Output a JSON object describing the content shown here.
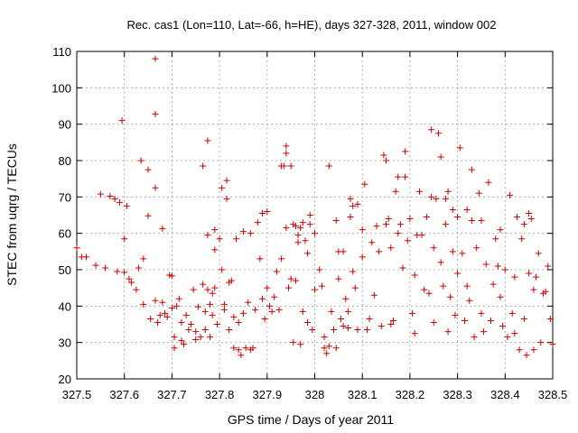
{
  "chart_data": {
    "type": "scatter",
    "title": "Rec. cas1 (Lon=110, Lat=-66, h=HE), days 327-328, 2011, window 002",
    "xlabel": "GPS time / Days of year 2011",
    "ylabel": "STEC from uqrg / TECUs",
    "xlim": [
      327.5,
      328.5
    ],
    "ylim": [
      20,
      110
    ],
    "xticks": [
      327.5,
      327.6,
      327.7,
      327.8,
      327.9,
      328,
      328.1,
      328.2,
      328.3,
      328.4,
      328.5
    ],
    "xtick_labels": [
      "327.5",
      "327.6",
      "327.7",
      "327.8",
      "327.9",
      "328",
      "328.1",
      "328.2",
      "328.3",
      "328.4",
      "328.5"
    ],
    "yticks": [
      20,
      30,
      40,
      50,
      60,
      70,
      80,
      90,
      100,
      110
    ],
    "ytick_labels": [
      "20",
      "30",
      "40",
      "50",
      "60",
      "70",
      "80",
      "90",
      "100",
      "110"
    ],
    "grid": true,
    "marker": "plus",
    "color": "#cc0000",
    "points": [
      [
        327.5,
        56.0
      ],
      [
        327.51,
        53.5
      ],
      [
        327.52,
        53.5
      ],
      [
        327.54,
        51.2
      ],
      [
        327.55,
        70.8
      ],
      [
        327.56,
        50.5
      ],
      [
        327.57,
        70.2
      ],
      [
        327.58,
        69.5
      ],
      [
        327.585,
        49.5
      ],
      [
        327.59,
        68.5
      ],
      [
        327.595,
        91.0
      ],
      [
        327.6,
        58.5
      ],
      [
        327.6,
        49.3
      ],
      [
        327.605,
        67.5
      ],
      [
        327.61,
        47.5
      ],
      [
        327.615,
        46.5
      ],
      [
        327.625,
        44.5
      ],
      [
        327.63,
        50.5
      ],
      [
        327.635,
        80.0
      ],
      [
        327.64,
        53.0
      ],
      [
        327.64,
        40.5
      ],
      [
        327.65,
        77.5
      ],
      [
        327.65,
        64.8
      ],
      [
        327.655,
        36.5
      ],
      [
        327.665,
        108.0
      ],
      [
        327.665,
        92.8
      ],
      [
        327.665,
        72.5
      ],
      [
        327.665,
        41.5
      ],
      [
        327.67,
        35.5
      ],
      [
        327.675,
        37.5
      ],
      [
        327.68,
        61.3
      ],
      [
        327.68,
        41.0
      ],
      [
        327.685,
        38.0
      ],
      [
        327.69,
        37.0
      ],
      [
        327.695,
        48.5
      ],
      [
        327.7,
        48.3
      ],
      [
        327.7,
        39.5
      ],
      [
        327.705,
        31.5
      ],
      [
        327.705,
        28.5
      ],
      [
        327.71,
        40.0
      ],
      [
        327.715,
        42.0
      ],
      [
        327.72,
        35.5
      ],
      [
        327.72,
        30.5
      ],
      [
        327.725,
        29.5
      ],
      [
        327.73,
        37.5
      ],
      [
        327.735,
        33.5
      ],
      [
        327.74,
        35.0
      ],
      [
        327.745,
        44.5
      ],
      [
        327.75,
        30.8
      ],
      [
        327.75,
        33.0
      ],
      [
        327.755,
        39.8
      ],
      [
        327.76,
        31.5
      ],
      [
        327.765,
        78.5
      ],
      [
        327.765,
        46.0
      ],
      [
        327.77,
        38.5
      ],
      [
        327.77,
        33.5
      ],
      [
        327.775,
        85.5
      ],
      [
        327.775,
        59.5
      ],
      [
        327.775,
        44.5
      ],
      [
        327.78,
        40.5
      ],
      [
        327.78,
        31.5
      ],
      [
        327.785,
        43.5
      ],
      [
        327.785,
        37.5
      ],
      [
        327.79,
        61.0
      ],
      [
        327.79,
        45.0
      ],
      [
        327.79,
        55.5
      ],
      [
        327.795,
        35.0
      ],
      [
        327.8,
        58.5
      ],
      [
        327.805,
        50.0
      ],
      [
        327.805,
        72.5
      ],
      [
        327.81,
        40.5
      ],
      [
        327.81,
        39.0
      ],
      [
        327.815,
        74.5
      ],
      [
        327.815,
        69.5
      ],
      [
        327.82,
        46.5
      ],
      [
        327.82,
        33.5
      ],
      [
        327.825,
        47.0
      ],
      [
        327.83,
        37.0
      ],
      [
        327.83,
        28.5
      ],
      [
        327.835,
        58.5
      ],
      [
        327.84,
        35.5
      ],
      [
        327.84,
        28.0
      ],
      [
        327.845,
        26.5
      ],
      [
        327.85,
        38.0
      ],
      [
        327.85,
        60.5
      ],
      [
        327.855,
        28.5
      ],
      [
        327.86,
        41.0
      ],
      [
        327.865,
        60.0
      ],
      [
        327.865,
        28.0
      ],
      [
        327.87,
        28.5
      ],
      [
        327.875,
        39.0
      ],
      [
        327.88,
        63.0
      ],
      [
        327.885,
        53.0
      ],
      [
        327.89,
        42.0
      ],
      [
        327.89,
        65.5
      ],
      [
        327.895,
        36.5
      ],
      [
        327.9,
        66.0
      ],
      [
        327.9,
        45.0
      ],
      [
        327.905,
        40.0
      ],
      [
        327.91,
        38.5
      ],
      [
        327.915,
        42.5
      ],
      [
        327.92,
        49.5
      ],
      [
        327.925,
        39.0
      ],
      [
        327.93,
        53.0
      ],
      [
        327.93,
        78.5
      ],
      [
        327.935,
        78.5
      ],
      [
        327.94,
        84.0
      ],
      [
        327.94,
        82.0
      ],
      [
        327.94,
        61.5
      ],
      [
        327.945,
        45.0
      ],
      [
        327.95,
        78.5
      ],
      [
        327.95,
        47.5
      ],
      [
        327.955,
        62.5
      ],
      [
        327.955,
        30.0
      ],
      [
        327.96,
        62.0
      ],
      [
        327.96,
        47.0
      ],
      [
        327.965,
        59.5
      ],
      [
        327.965,
        57.5
      ],
      [
        327.97,
        61.5
      ],
      [
        327.97,
        29.5
      ],
      [
        327.975,
        38.5
      ],
      [
        327.975,
        63.0
      ],
      [
        327.98,
        58.0
      ],
      [
        327.985,
        54.5
      ],
      [
        327.985,
        35.5
      ],
      [
        327.99,
        62.5
      ],
      [
        327.99,
        65.0
      ],
      [
        327.995,
        33.5
      ],
      [
        328.0,
        60.0
      ],
      [
        328.0,
        44.5
      ],
      [
        328.01,
        50.0
      ],
      [
        328.015,
        45.5
      ],
      [
        328.02,
        31.5
      ],
      [
        328.02,
        28.5
      ],
      [
        328.025,
        27.0
      ],
      [
        328.03,
        78.5
      ],
      [
        328.03,
        29.0
      ],
      [
        328.035,
        38.5
      ],
      [
        328.04,
        33.5
      ],
      [
        328.045,
        63.5
      ],
      [
        328.045,
        28.5
      ],
      [
        328.05,
        47.5
      ],
      [
        328.05,
        55.0
      ],
      [
        328.055,
        36.5
      ],
      [
        328.06,
        34.5
      ],
      [
        328.06,
        55.0
      ],
      [
        328.065,
        42.0
      ],
      [
        328.07,
        38.5
      ],
      [
        328.07,
        34.0
      ],
      [
        328.075,
        64.5
      ],
      [
        328.075,
        69.5
      ],
      [
        328.08,
        67.5
      ],
      [
        328.08,
        49.5
      ],
      [
        328.085,
        45.0
      ],
      [
        328.09,
        68.0
      ],
      [
        328.09,
        33.5
      ],
      [
        328.1,
        61.0
      ],
      [
        328.1,
        53.5
      ],
      [
        328.105,
        73.5
      ],
      [
        328.11,
        33.5
      ],
      [
        328.115,
        36.5
      ],
      [
        328.12,
        57.5
      ],
      [
        328.125,
        43.0
      ],
      [
        328.13,
        62.0
      ],
      [
        328.135,
        55.0
      ],
      [
        328.14,
        34.5
      ],
      [
        328.145,
        81.5
      ],
      [
        328.15,
        80.0
      ],
      [
        328.15,
        62.5
      ],
      [
        328.155,
        64.0
      ],
      [
        328.16,
        56.0
      ],
      [
        328.16,
        35.0
      ],
      [
        328.165,
        36.0
      ],
      [
        328.17,
        71.5
      ],
      [
        328.175,
        75.5
      ],
      [
        328.175,
        60.0
      ],
      [
        328.18,
        62.5
      ],
      [
        328.185,
        50.5
      ],
      [
        328.19,
        82.5
      ],
      [
        328.19,
        75.5
      ],
      [
        328.195,
        58.0
      ],
      [
        328.2,
        64.0
      ],
      [
        328.205,
        38.0
      ],
      [
        328.21,
        48.5
      ],
      [
        328.21,
        32.5
      ],
      [
        328.215,
        59.5
      ],
      [
        328.22,
        71.5
      ],
      [
        328.225,
        59.5
      ],
      [
        328.23,
        44.5
      ],
      [
        328.235,
        64.5
      ],
      [
        328.24,
        43.5
      ],
      [
        328.245,
        88.5
      ],
      [
        328.245,
        70.0
      ],
      [
        328.25,
        56.0
      ],
      [
        328.25,
        35.5
      ],
      [
        328.255,
        69.5
      ],
      [
        328.26,
        87.5
      ],
      [
        328.265,
        81.0
      ],
      [
        328.265,
        52.0
      ],
      [
        328.27,
        45.5
      ],
      [
        328.275,
        69.5
      ],
      [
        328.275,
        62.5
      ],
      [
        328.28,
        71.5
      ],
      [
        328.28,
        33.0
      ],
      [
        328.285,
        42.5
      ],
      [
        328.29,
        66.5
      ],
      [
        328.29,
        55.0
      ],
      [
        328.295,
        37.5
      ],
      [
        328.3,
        64.5
      ],
      [
        328.3,
        49.0
      ],
      [
        328.305,
        83.5
      ],
      [
        328.31,
        54.5
      ],
      [
        328.315,
        36.0
      ],
      [
        328.32,
        66.5
      ],
      [
        328.32,
        45.5
      ],
      [
        328.325,
        41.5
      ],
      [
        328.33,
        77.5
      ],
      [
        328.33,
        63.5
      ],
      [
        328.335,
        31.5
      ],
      [
        328.34,
        56.0
      ],
      [
        328.345,
        71.0
      ],
      [
        328.35,
        63.5
      ],
      [
        328.35,
        38.0
      ],
      [
        328.355,
        33.0
      ],
      [
        328.36,
        51.5
      ],
      [
        328.365,
        74.0
      ],
      [
        328.37,
        36.0
      ],
      [
        328.375,
        46.0
      ],
      [
        328.38,
        58.5
      ],
      [
        328.385,
        51.0
      ],
      [
        328.39,
        61.0
      ],
      [
        328.39,
        42.5
      ],
      [
        328.395,
        34.5
      ],
      [
        328.4,
        50.0
      ],
      [
        328.405,
        31.5
      ],
      [
        328.41,
        70.5
      ],
      [
        328.415,
        38.0
      ],
      [
        328.42,
        48.0
      ],
      [
        328.42,
        32.5
      ],
      [
        328.425,
        64.5
      ],
      [
        328.43,
        28.0
      ],
      [
        328.435,
        58.5
      ],
      [
        328.44,
        62.5
      ],
      [
        328.44,
        36.5
      ],
      [
        328.445,
        26.5
      ],
      [
        328.45,
        65.5
      ],
      [
        328.45,
        49.0
      ],
      [
        328.455,
        64.0
      ],
      [
        328.46,
        44.5
      ],
      [
        328.46,
        28.0
      ],
      [
        328.465,
        48.0
      ],
      [
        328.47,
        54.5
      ],
      [
        328.475,
        30.0
      ],
      [
        328.48,
        43.5
      ],
      [
        328.485,
        44.0
      ],
      [
        328.49,
        51.0
      ],
      [
        328.495,
        36.5
      ],
      [
        328.5,
        29.5
      ]
    ]
  }
}
